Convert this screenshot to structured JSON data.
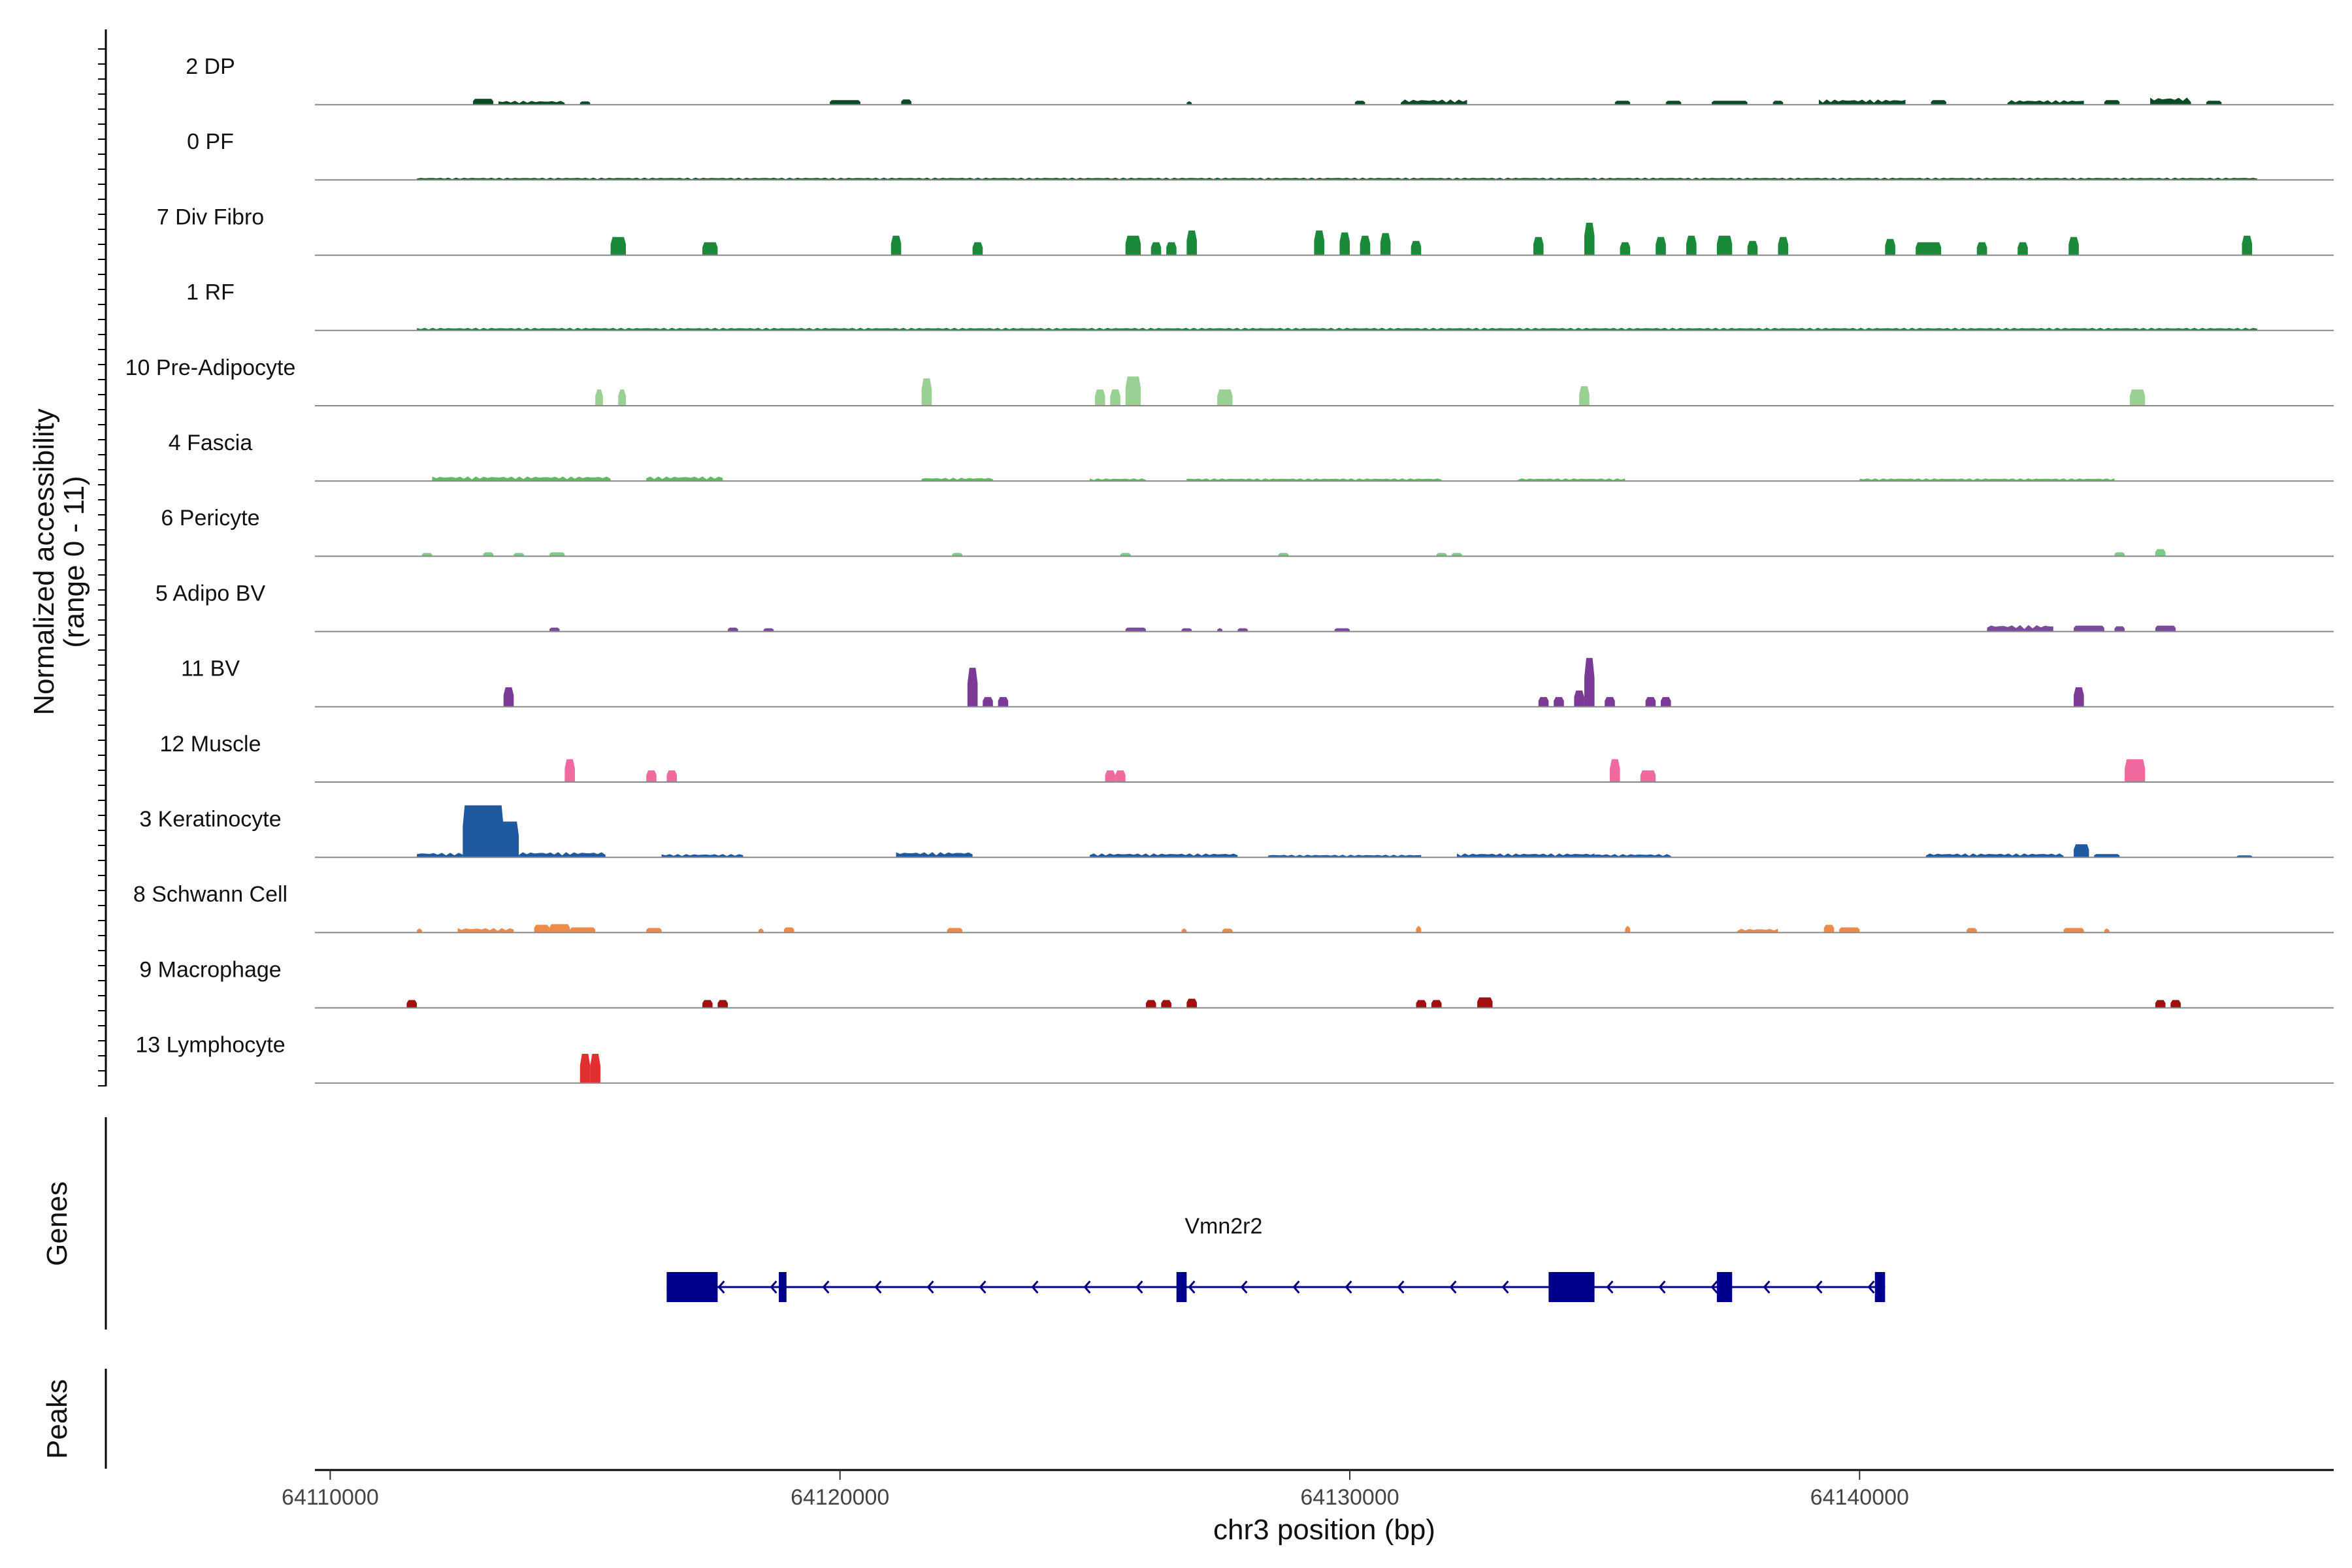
{
  "chart_data": {
    "type": "area",
    "title": "",
    "ylabel": [
      "Normalized accessibility",
      "(range 0 - 11)"
    ],
    "xlabel": "chr3 position (bp)",
    "xlim": [
      64109700,
      64149300
    ],
    "ylim_per_track": [
      0,
      11
    ],
    "x_ticks": [
      64110000,
      64120000,
      64130000,
      64140000
    ],
    "tracks": [
      {
        "name": "2 DP",
        "color": "#0a4a25",
        "peaks": [
          [
            64112800,
            64113200,
            0.9
          ],
          [
            64113300,
            64114600,
            0.6
          ],
          [
            64114900,
            64115100,
            0.5
          ],
          [
            64119800,
            64120400,
            0.7
          ],
          [
            64121200,
            64121400,
            0.8
          ],
          [
            64126800,
            64126900,
            0.5
          ],
          [
            64130100,
            64130300,
            0.6
          ],
          [
            64131000,
            64132300,
            0.8
          ],
          [
            64135200,
            64135500,
            0.6
          ],
          [
            64136200,
            64136500,
            0.6
          ],
          [
            64137100,
            64137800,
            0.6
          ],
          [
            64138300,
            64138500,
            0.6
          ],
          [
            64139200,
            64140900,
            0.8
          ],
          [
            64141400,
            64141700,
            0.7
          ],
          [
            64142900,
            64144400,
            0.7
          ],
          [
            64144800,
            64145100,
            0.7
          ],
          [
            64145700,
            64146500,
            1.1
          ],
          [
            64146800,
            64147100,
            0.6
          ]
        ]
      },
      {
        "name": "0 PF",
        "color": "#0a5a2a",
        "peaks": [
          [
            64111700,
            64147800,
            0.35
          ]
        ]
      },
      {
        "name": "7 Div Fibro",
        "color": "#1a8a3a",
        "peaks": [
          [
            64115500,
            64115800,
            2.8
          ],
          [
            64117300,
            64117600,
            2.0
          ],
          [
            64121000,
            64121200,
            3.0
          ],
          [
            64122600,
            64122800,
            2.0
          ],
          [
            64125600,
            64125900,
            3.0
          ],
          [
            64126100,
            64126300,
            2.0
          ],
          [
            64126400,
            64126600,
            2.0
          ],
          [
            64126800,
            64127000,
            3.8
          ],
          [
            64129300,
            64129500,
            3.8
          ],
          [
            64129800,
            64130000,
            3.5
          ],
          [
            64130200,
            64130400,
            3.0
          ],
          [
            64130600,
            64130800,
            3.4
          ],
          [
            64131200,
            64131400,
            2.2
          ],
          [
            64133600,
            64133800,
            2.8
          ],
          [
            64134600,
            64134800,
            5.0
          ],
          [
            64135300,
            64135500,
            2.0
          ],
          [
            64136000,
            64136200,
            2.8
          ],
          [
            64136600,
            64136800,
            3.0
          ],
          [
            64137200,
            64137500,
            3.0
          ],
          [
            64137800,
            64138000,
            2.2
          ],
          [
            64138400,
            64138600,
            2.8
          ],
          [
            64140500,
            64140700,
            2.5
          ],
          [
            64141100,
            64141600,
            2.0
          ],
          [
            64142300,
            64142500,
            2.0
          ],
          [
            64143100,
            64143300,
            2.0
          ],
          [
            64144100,
            64144300,
            2.8
          ],
          [
            64147500,
            64147700,
            3.0
          ]
        ]
      },
      {
        "name": "1 RF",
        "color": "#1a7a3a",
        "peaks": [
          [
            64111700,
            64147800,
            0.4
          ]
        ]
      },
      {
        "name": "10 Pre-Adipocyte",
        "color": "#99d094",
        "peaks": [
          [
            64115200,
            64115350,
            2.5
          ],
          [
            64115650,
            64115800,
            2.5
          ],
          [
            64121600,
            64121800,
            4.2
          ],
          [
            64125000,
            64125200,
            2.5
          ],
          [
            64125300,
            64125500,
            2.5
          ],
          [
            64125600,
            64125900,
            4.5
          ],
          [
            64127400,
            64127700,
            2.5
          ],
          [
            64134500,
            64134700,
            3.0
          ],
          [
            64145300,
            64145600,
            2.5
          ]
        ]
      },
      {
        "name": "4 Fascia",
        "color": "#62b863",
        "peaks": [
          [
            64112000,
            64115500,
            0.7
          ],
          [
            64116200,
            64117700,
            0.7
          ],
          [
            64121600,
            64123000,
            0.5
          ],
          [
            64124900,
            64126000,
            0.4
          ],
          [
            64126800,
            64131800,
            0.4
          ],
          [
            64133300,
            64135400,
            0.4
          ],
          [
            64140000,
            64145000,
            0.4
          ]
        ]
      },
      {
        "name": "6 Pericyte",
        "color": "#7fca86",
        "peaks": [
          [
            64111800,
            64112000,
            0.5
          ],
          [
            64113000,
            64113200,
            0.6
          ],
          [
            64113600,
            64113800,
            0.5
          ],
          [
            64114300,
            64114600,
            0.6
          ],
          [
            64122200,
            64122400,
            0.5
          ],
          [
            64125500,
            64125700,
            0.5
          ],
          [
            64128600,
            64128800,
            0.5
          ],
          [
            64131700,
            64131900,
            0.5
          ],
          [
            64132000,
            64132200,
            0.5
          ],
          [
            64145000,
            64145200,
            0.6
          ],
          [
            64145800,
            64146000,
            1.1
          ]
        ]
      },
      {
        "name": "5 Adipo BV",
        "color": "#7a4a9e",
        "peaks": [
          [
            64114300,
            64114500,
            0.6
          ],
          [
            64117800,
            64118000,
            0.6
          ],
          [
            64118500,
            64118700,
            0.5
          ],
          [
            64125600,
            64126000,
            0.6
          ],
          [
            64126700,
            64126900,
            0.5
          ],
          [
            64127400,
            64127500,
            0.5
          ],
          [
            64127800,
            64128000,
            0.5
          ],
          [
            64129700,
            64130000,
            0.5
          ],
          [
            64142500,
            64143800,
            1.0
          ],
          [
            64144200,
            64144800,
            0.9
          ],
          [
            64145000,
            64145200,
            0.8
          ],
          [
            64145800,
            64146200,
            0.9
          ]
        ]
      },
      {
        "name": "11 BV",
        "color": "#7b3a96",
        "peaks": [
          [
            64113400,
            64113600,
            3.0
          ],
          [
            64122500,
            64122700,
            6.0
          ],
          [
            64122800,
            64123000,
            1.5
          ],
          [
            64123100,
            64123300,
            1.5
          ],
          [
            64133700,
            64133900,
            1.5
          ],
          [
            64134000,
            64134200,
            1.5
          ],
          [
            64134400,
            64134600,
            2.5
          ],
          [
            64134600,
            64134800,
            7.5
          ],
          [
            64135000,
            64135200,
            1.5
          ],
          [
            64135800,
            64136000,
            1.5
          ],
          [
            64136100,
            64136300,
            1.5
          ],
          [
            64144200,
            64144400,
            3.0
          ]
        ]
      },
      {
        "name": "12 Muscle",
        "color": "#f06aa0",
        "peaks": [
          [
            64114600,
            64114800,
            3.5
          ],
          [
            64116200,
            64116400,
            1.8
          ],
          [
            64116600,
            64116800,
            1.8
          ],
          [
            64125200,
            64125400,
            1.8
          ],
          [
            64125400,
            64125600,
            1.8
          ],
          [
            64135100,
            64135300,
            3.5
          ],
          [
            64135700,
            64136000,
            1.8
          ],
          [
            64145200,
            64145600,
            3.5
          ]
        ]
      },
      {
        "name": "3 Keratinocyte",
        "color": "#1f5aa0",
        "peaks": [
          [
            64111700,
            64112600,
            0.7
          ],
          [
            64112600,
            64113400,
            8.0
          ],
          [
            64113300,
            64113700,
            5.5
          ],
          [
            64113700,
            64115400,
            0.8
          ],
          [
            64116500,
            64118100,
            0.5
          ],
          [
            64121100,
            64122600,
            0.8
          ],
          [
            64124900,
            64127800,
            0.6
          ],
          [
            64128400,
            64131400,
            0.4
          ],
          [
            64132100,
            64134800,
            0.6
          ],
          [
            64134800,
            64136300,
            0.5
          ],
          [
            64141300,
            64144000,
            0.6
          ],
          [
            64144200,
            64144500,
            2.0
          ],
          [
            64144600,
            64145100,
            0.5
          ],
          [
            64147400,
            64147700,
            0.3
          ]
        ]
      },
      {
        "name": "8 Schwann Cell",
        "color": "#f08a48",
        "peaks": [
          [
            64111700,
            64111800,
            0.6
          ],
          [
            64112500,
            64113600,
            0.7
          ],
          [
            64114000,
            64114300,
            1.2
          ],
          [
            64114300,
            64114700,
            1.3
          ],
          [
            64114700,
            64115200,
            0.8
          ],
          [
            64116200,
            64116500,
            0.7
          ],
          [
            64118400,
            64118500,
            0.6
          ],
          [
            64118900,
            64119100,
            0.8
          ],
          [
            64122100,
            64122400,
            0.7
          ],
          [
            64126700,
            64126800,
            0.6
          ],
          [
            64127500,
            64127700,
            0.6
          ],
          [
            64131300,
            64131400,
            1.0
          ],
          [
            64135400,
            64135500,
            1.0
          ],
          [
            64137600,
            64138400,
            0.6
          ],
          [
            64139300,
            64139500,
            1.2
          ],
          [
            64139600,
            64140000,
            0.8
          ],
          [
            64142100,
            64142300,
            0.7
          ],
          [
            64144000,
            64144400,
            0.7
          ],
          [
            64144800,
            64144900,
            0.6
          ]
        ]
      },
      {
        "name": "9 Macrophage",
        "color": "#a01010",
        "peaks": [
          [
            64111500,
            64111700,
            1.2
          ],
          [
            64117300,
            64117500,
            1.2
          ],
          [
            64117600,
            64117800,
            1.2
          ],
          [
            64126000,
            64126200,
            1.2
          ],
          [
            64126300,
            64126500,
            1.2
          ],
          [
            64126800,
            64127000,
            1.4
          ],
          [
            64131300,
            64131500,
            1.2
          ],
          [
            64131600,
            64131800,
            1.2
          ],
          [
            64132500,
            64132800,
            1.6
          ],
          [
            64145800,
            64146000,
            1.2
          ],
          [
            64146100,
            64146300,
            1.2
          ]
        ]
      },
      {
        "name": "13 Lymphocyte",
        "color": "#e03030",
        "peaks": [
          [
            64114900,
            64115100,
            4.5
          ],
          [
            64115100,
            64115300,
            4.5
          ]
        ]
      }
    ],
    "genes": [
      {
        "name": "Vmn2r2",
        "strand": "-",
        "start": 64116600,
        "end": 64140500,
        "exons": [
          [
            64116600,
            64117600
          ],
          [
            64118800,
            64118950
          ],
          [
            64126600,
            64126800
          ],
          [
            64133900,
            64134800
          ],
          [
            64137200,
            64137500
          ],
          [
            64140300,
            64140500
          ]
        ]
      }
    ],
    "panels": {
      "genes_label": "Genes",
      "peaks_label": "Peaks"
    }
  },
  "colors": {
    "gene": "#00008b",
    "baseline": "#888888",
    "axis": "#000000"
  }
}
